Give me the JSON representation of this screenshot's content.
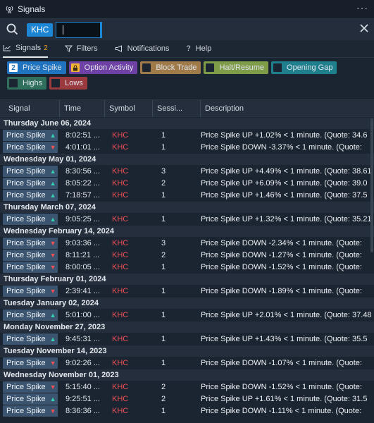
{
  "window": {
    "title": "Signals",
    "more_label": "···"
  },
  "search": {
    "symbol_chip": "KHC",
    "input_value": ""
  },
  "tabs": [
    {
      "label": "Signals",
      "badge": "2",
      "icon": "line-chart-icon"
    },
    {
      "label": "Filters",
      "icon": "filter-icon"
    },
    {
      "label": "Notifications",
      "icon": "megaphone-icon"
    },
    {
      "label": "Help",
      "icon": "question-icon"
    }
  ],
  "filters": [
    {
      "label": "Price Spike",
      "badge": "2",
      "checked": true,
      "color": "#1f73bf"
    },
    {
      "label": "Option Activity",
      "checked": false,
      "color": "#6f41a5",
      "box": "#f2b632"
    },
    {
      "label": "Block Trade",
      "checked": false,
      "color": "#a07a48"
    },
    {
      "label": "Halt/Resume",
      "checked": false,
      "color": "#7f9c48"
    },
    {
      "label": "Opening Gap",
      "checked": false,
      "color": "#1f7f8d"
    },
    {
      "label": "Highs",
      "checked": false,
      "color": "#2f6f5b"
    },
    {
      "label": "Lows",
      "checked": false,
      "color": "#9a3a3f"
    }
  ],
  "columns": [
    "Signal",
    "Time",
    "Symbol",
    "Sessi...",
    "Description"
  ],
  "groups": [
    {
      "date": "Thursday June 06, 2024",
      "rows": [
        {
          "signal": "Price Spike",
          "dir": "up",
          "time": "8:02:51 ...",
          "symbol": "KHC",
          "session": "1",
          "desc": "Price Spike UP +1.02% < 1 minute. (Quote: 34.6"
        },
        {
          "signal": "Price Spike",
          "dir": "down",
          "time": "4:01:01 ...",
          "symbol": "KHC",
          "session": "1",
          "desc": "Price Spike DOWN -3.37% < 1 minute. (Quote:"
        }
      ]
    },
    {
      "date": "Wednesday May 01, 2024",
      "rows": [
        {
          "signal": "Price Spike",
          "dir": "up",
          "time": "8:30:56 ...",
          "symbol": "KHC",
          "session": "3",
          "desc": "Price Spike UP +4.49% < 1 minute. (Quote: 38.61"
        },
        {
          "signal": "Price Spike",
          "dir": "up",
          "time": "8:05:22 ...",
          "symbol": "KHC",
          "session": "2",
          "desc": "Price Spike UP +6.09% < 1 minute. (Quote: 39.0"
        },
        {
          "signal": "Price Spike",
          "dir": "up",
          "time": "7:18:57 ...",
          "symbol": "KHC",
          "session": "1",
          "desc": "Price Spike UP +1.46% < 1 minute. (Quote: 37.5"
        }
      ]
    },
    {
      "date": "Thursday March 07, 2024",
      "rows": [
        {
          "signal": "Price Spike",
          "dir": "up",
          "time": "9:05:25 ...",
          "symbol": "KHC",
          "session": "1",
          "desc": "Price Spike UP +1.32% < 1 minute. (Quote: 35.21"
        }
      ]
    },
    {
      "date": "Wednesday February 14, 2024",
      "rows": [
        {
          "signal": "Price Spike",
          "dir": "down",
          "time": "9:03:36 ...",
          "symbol": "KHC",
          "session": "3",
          "desc": "Price Spike DOWN -2.34% < 1 minute. (Quote:"
        },
        {
          "signal": "Price Spike",
          "dir": "down",
          "time": "8:11:21 ...",
          "symbol": "KHC",
          "session": "2",
          "desc": "Price Spike DOWN -1.27% < 1 minute. (Quote:"
        },
        {
          "signal": "Price Spike",
          "dir": "down",
          "time": "8:00:05 ...",
          "symbol": "KHC",
          "session": "1",
          "desc": "Price Spike DOWN -1.52% < 1 minute. (Quote:"
        }
      ]
    },
    {
      "date": "Thursday February 01, 2024",
      "rows": [
        {
          "signal": "Price Spike",
          "dir": "down",
          "time": "2:39:41 ...",
          "symbol": "KHC",
          "session": "1",
          "desc": "Price Spike DOWN -1.89% < 1 minute. (Quote:"
        }
      ]
    },
    {
      "date": "Tuesday January 02, 2024",
      "rows": [
        {
          "signal": "Price Spike",
          "dir": "up",
          "time": "5:01:00 ...",
          "symbol": "KHC",
          "session": "1",
          "desc": "Price Spike UP +2.01% < 1 minute. (Quote: 37.48"
        }
      ]
    },
    {
      "date": "Monday November 27, 2023",
      "rows": [
        {
          "signal": "Price Spike",
          "dir": "up",
          "time": "9:45:31 ...",
          "symbol": "KHC",
          "session": "1",
          "desc": "Price Spike UP +1.43% < 1 minute. (Quote: 35.5"
        }
      ]
    },
    {
      "date": "Tuesday November 14, 2023",
      "rows": [
        {
          "signal": "Price Spike",
          "dir": "down",
          "time": "9:02:26 ...",
          "symbol": "KHC",
          "session": "1",
          "desc": "Price Spike DOWN -1.07% < 1 minute. (Quote:"
        }
      ]
    },
    {
      "date": "Wednesday November 01, 2023",
      "rows": [
        {
          "signal": "Price Spike",
          "dir": "down",
          "time": "5:15:40 ...",
          "symbol": "KHC",
          "session": "2",
          "desc": "Price Spike DOWN -1.52% < 1 minute. (Quote:"
        },
        {
          "signal": "Price Spike",
          "dir": "up",
          "time": "9:25:51 ...",
          "symbol": "KHC",
          "session": "2",
          "desc": "Price Spike UP +1.61% < 1 minute. (Quote: 31.5"
        },
        {
          "signal": "Price Spike",
          "dir": "down",
          "time": "8:36:36 ...",
          "symbol": "KHC",
          "session": "1",
          "desc": "Price Spike DOWN -1.11% < 1 minute. (Quote:"
        }
      ]
    }
  ]
}
